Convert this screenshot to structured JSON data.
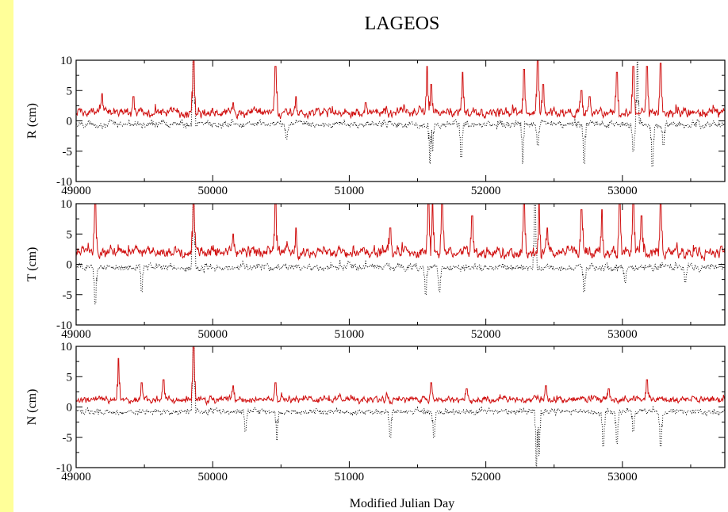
{
  "chart_data": {
    "type": "line",
    "title": "LAGEOS",
    "xlabel": "Modified Julian Day",
    "xlim": [
      49000,
      53750
    ],
    "x_ticks": [
      "49000",
      "50000",
      "51000",
      "52000",
      "53000"
    ],
    "y_ticks": [
      "-10",
      "-5",
      "0",
      "5",
      "10"
    ],
    "grid": false,
    "panels": [
      {
        "ylabel": "R (cm)",
        "ylim": [
          -10,
          10
        ],
        "red_baseline": 1.4,
        "red_noise": 0.8,
        "black_baseline": -0.6,
        "black_noise": 0.6,
        "red_spikes": [
          [
            49190,
            4.5
          ],
          [
            49420,
            4
          ],
          [
            49860,
            10
          ],
          [
            50150,
            3
          ],
          [
            50460,
            9
          ],
          [
            50610,
            4
          ],
          [
            51120,
            3
          ],
          [
            51570,
            9
          ],
          [
            51600,
            6
          ],
          [
            51830,
            8
          ],
          [
            52280,
            8.5
          ],
          [
            52380,
            10
          ],
          [
            52420,
            6
          ],
          [
            52700,
            5
          ],
          [
            52760,
            4
          ],
          [
            52960,
            8
          ],
          [
            53080,
            9
          ],
          [
            53180,
            9
          ],
          [
            53280,
            9.5
          ]
        ],
        "black_spikes": [
          [
            49860,
            10
          ],
          [
            50540,
            -3
          ],
          [
            51590,
            -7
          ],
          [
            51610,
            -5
          ],
          [
            51820,
            -6
          ],
          [
            52270,
            -7
          ],
          [
            52380,
            -4
          ],
          [
            52720,
            -7
          ],
          [
            53080,
            -5
          ],
          [
            53110,
            10
          ],
          [
            53220,
            -7.5
          ],
          [
            53300,
            -4
          ]
        ]
      },
      {
        "ylabel": "T (cm)",
        "ylim": [
          -10,
          10
        ],
        "red_baseline": 2.0,
        "red_noise": 1.0,
        "black_baseline": -0.5,
        "black_noise": 0.6,
        "red_spikes": [
          [
            49140,
            10
          ],
          [
            49860,
            10
          ],
          [
            50150,
            5
          ],
          [
            50460,
            10
          ],
          [
            50610,
            6
          ],
          [
            51300,
            6
          ],
          [
            51580,
            10
          ],
          [
            51610,
            10
          ],
          [
            51680,
            10
          ],
          [
            51900,
            8
          ],
          [
            52280,
            10
          ],
          [
            52390,
            10
          ],
          [
            52450,
            6
          ],
          [
            52700,
            9
          ],
          [
            52850,
            9
          ],
          [
            52980,
            10
          ],
          [
            53080,
            10
          ],
          [
            53140,
            8
          ],
          [
            53280,
            10
          ]
        ],
        "black_spikes": [
          [
            49140,
            -6.5
          ],
          [
            49480,
            -4.5
          ],
          [
            49860,
            10
          ],
          [
            51560,
            -5
          ],
          [
            51660,
            -4.5
          ],
          [
            52360,
            10
          ],
          [
            52720,
            -4.5
          ],
          [
            53020,
            -3
          ],
          [
            53460,
            -3
          ]
        ]
      },
      {
        "ylabel": "N (cm)",
        "ylim": [
          -10,
          10
        ],
        "red_baseline": 1.2,
        "red_noise": 0.6,
        "black_baseline": -0.8,
        "black_noise": 0.5,
        "red_spikes": [
          [
            49310,
            8
          ],
          [
            49480,
            4
          ],
          [
            49640,
            4.5
          ],
          [
            49860,
            10
          ],
          [
            50150,
            3.5
          ],
          [
            50460,
            4
          ],
          [
            51600,
            4
          ],
          [
            51860,
            3
          ],
          [
            52440,
            3.5
          ],
          [
            52900,
            3
          ],
          [
            53180,
            4.5
          ]
        ],
        "black_spikes": [
          [
            49860,
            10
          ],
          [
            50240,
            -4
          ],
          [
            50470,
            -5.5
          ],
          [
            51300,
            -5
          ],
          [
            51620,
            -5
          ],
          [
            52370,
            -10
          ],
          [
            52390,
            -8
          ],
          [
            52860,
            -6.5
          ],
          [
            52960,
            -6
          ],
          [
            53080,
            -4
          ],
          [
            53280,
            -6.5
          ]
        ]
      }
    ]
  }
}
